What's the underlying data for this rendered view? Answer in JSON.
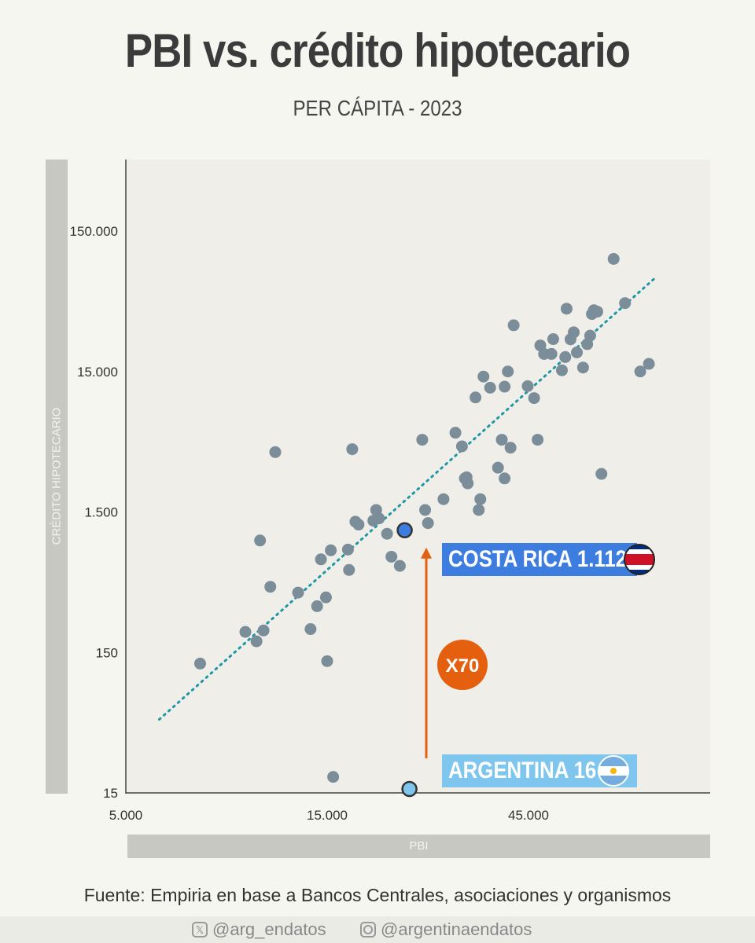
{
  "title": "PBI vs. crédito hipotecario",
  "subtitle": "PER CÁPITA - 2023",
  "source": "Fuente: Empiria en base a Bancos Centrales, asociaciones y organismos",
  "social": {
    "x_handle": "@arg_endatos",
    "instagram_handle": "@argentinaendatos"
  },
  "colors": {
    "background": "#f6f6f0",
    "plot_background": "#efeee8",
    "point": "#7b8d99",
    "trendline": "#1f97a5",
    "costa_rica": "#3d7de0",
    "argentina": "#7fc6ee",
    "arrow": "#e4600f"
  },
  "chart_data": {
    "type": "scatter",
    "title": "PBI vs. crédito hipotecario",
    "subtitle": "PER CÁPITA - 2023",
    "xlabel": "PBI",
    "ylabel": "CRÉDITO HIPOTECARIO",
    "x_scale": "log",
    "y_scale": "log",
    "xlim": [
      5000,
      90000
    ],
    "ylim": [
      15,
      170000
    ],
    "x_ticks": [
      {
        "value": 5000,
        "label": "5.000"
      },
      {
        "value": 15000,
        "label": "15.000"
      },
      {
        "value": 45000,
        "label": "45.000"
      }
    ],
    "y_ticks": [
      {
        "value": 15,
        "label": "15"
      },
      {
        "value": 150,
        "label": "150"
      },
      {
        "value": 1500,
        "label": "1.500"
      },
      {
        "value": 15000,
        "label": "15.000"
      },
      {
        "value": 150000,
        "label": "150.000"
      }
    ],
    "points": [
      [
        7500,
        125
      ],
      [
        9600,
        210
      ],
      [
        10200,
        180
      ],
      [
        10400,
        940
      ],
      [
        10600,
        215
      ],
      [
        11000,
        440
      ],
      [
        11300,
        4000
      ],
      [
        12800,
        400
      ],
      [
        13700,
        220
      ],
      [
        14200,
        320
      ],
      [
        14500,
        690
      ],
      [
        14900,
        370
      ],
      [
        15000,
        130
      ],
      [
        15300,
        800
      ],
      [
        15500,
        19.5
      ],
      [
        16800,
        810
      ],
      [
        17200,
        4200
      ],
      [
        16900,
        580
      ],
      [
        17500,
        1280
      ],
      [
        17800,
        1220
      ],
      [
        19300,
        1300
      ],
      [
        19600,
        1550
      ],
      [
        19900,
        1350
      ],
      [
        20800,
        1050
      ],
      [
        21300,
        720
      ],
      [
        22300,
        620
      ],
      [
        25200,
        4900
      ],
      [
        25600,
        1550
      ],
      [
        26000,
        1250
      ],
      [
        28300,
        1850
      ],
      [
        30200,
        5500
      ],
      [
        29100,
        650
      ],
      [
        31300,
        4400
      ],
      [
        31800,
        2600
      ],
      [
        32300,
        2400
      ],
      [
        32100,
        2650
      ],
      [
        33700,
        9800
      ],
      [
        34300,
        1550
      ],
      [
        34600,
        1850
      ],
      [
        36500,
        11500
      ],
      [
        35200,
        13800
      ],
      [
        39500,
        2600
      ],
      [
        38100,
        3100
      ],
      [
        38900,
        4900
      ],
      [
        39500,
        11700
      ],
      [
        40200,
        15000
      ],
      [
        41500,
        32000
      ],
      [
        40800,
        4300
      ],
      [
        46400,
        9700
      ],
      [
        44800,
        11800
      ],
      [
        47300,
        4900
      ],
      [
        48000,
        23000
      ],
      [
        49000,
        20000
      ],
      [
        51500,
        25500
      ],
      [
        51000,
        20000
      ],
      [
        54000,
        15300
      ],
      [
        55000,
        19000
      ],
      [
        55400,
        42000
      ],
      [
        56600,
        25400
      ],
      [
        57600,
        28500
      ],
      [
        58600,
        20500
      ],
      [
        60600,
        16000
      ],
      [
        62000,
        23500
      ],
      [
        63600,
        38500
      ],
      [
        63000,
        27000
      ],
      [
        64300,
        41000
      ],
      [
        65500,
        40000
      ],
      [
        67000,
        2800
      ],
      [
        71600,
        95000
      ],
      [
        76200,
        46000
      ],
      [
        82800,
        15000
      ],
      [
        86800,
        17000
      ]
    ],
    "highlights": [
      {
        "name": "COSTA RICA",
        "value_label": "1.112",
        "x": 22900,
        "y": 1112
      },
      {
        "name": "ARGENTINA",
        "value_label": "16",
        "x": 23500,
        "y": 16
      }
    ],
    "multiplier_label": "X70",
    "trendline": {
      "x": [
        6000,
        90000
      ],
      "y": [
        50,
        70000
      ],
      "style": "dotted"
    }
  }
}
